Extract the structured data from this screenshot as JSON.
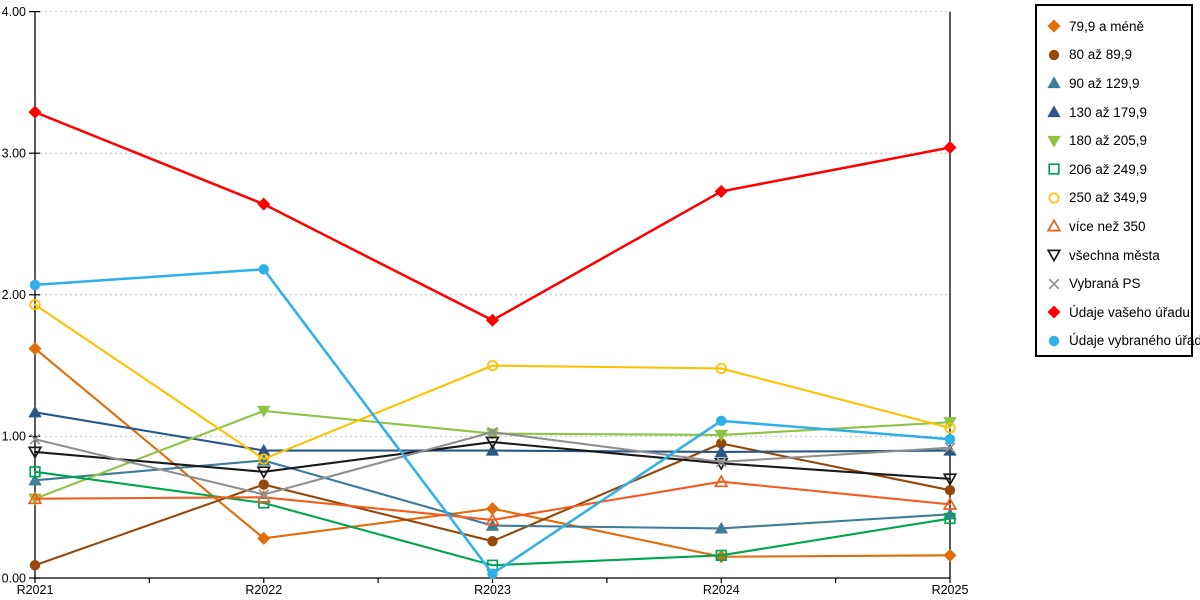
{
  "chart_data": {
    "type": "line",
    "title": "",
    "xlabel": "",
    "ylabel": "",
    "categories": [
      "R2021",
      "R2022",
      "R2023",
      "R2024",
      "R2025"
    ],
    "ylim": [
      0,
      4
    ],
    "y_ticks": [
      "0.00",
      "1.00",
      "2.00",
      "3.00",
      "4.00"
    ],
    "grid": "horizontal dotted",
    "legend_position": "right outside",
    "axis_color": "#000000",
    "grid_color": "#BFBFBF",
    "series": [
      {
        "name": "79,9 a méně",
        "marker": "diamond",
        "filled": true,
        "color": "#E26B0A",
        "values": [
          1.62,
          0.28,
          0.49,
          0.15,
          0.16
        ]
      },
      {
        "name": "80 až 89,9",
        "marker": "circle",
        "filled": true,
        "color": "#96470A",
        "values": [
          0.09,
          0.66,
          0.26,
          0.95,
          0.62
        ]
      },
      {
        "name": "90 až 129,9",
        "marker": "triangle-up",
        "filled": true,
        "color": "#3E7D99",
        "values": [
          0.69,
          0.83,
          0.37,
          0.35,
          0.45
        ]
      },
      {
        "name": "130 až 179,9",
        "marker": "triangle-up",
        "filled": true,
        "color": "#2A5784",
        "values": [
          1.17,
          0.9,
          0.9,
          0.89,
          0.9
        ]
      },
      {
        "name": "180 až 205,9",
        "marker": "triangle-down",
        "filled": true,
        "color": "#8FC342",
        "values": [
          0.56,
          1.18,
          1.02,
          1.01,
          1.1
        ]
      },
      {
        "name": "206 až 249,9",
        "marker": "square",
        "filled": false,
        "color": "#00A551",
        "values": [
          0.75,
          0.53,
          0.09,
          0.16,
          0.42
        ]
      },
      {
        "name": "250 až 349,9",
        "marker": "circle",
        "filled": false,
        "color": "#FFC000",
        "values": [
          1.93,
          0.84,
          1.5,
          1.48,
          1.06
        ]
      },
      {
        "name": "více než 350",
        "marker": "triangle-up",
        "filled": false,
        "color": "#F45A1E",
        "values": [
          0.56,
          0.57,
          0.41,
          0.68,
          0.52
        ]
      },
      {
        "name": "všechna města",
        "marker": "triangle-down",
        "filled": false,
        "color": "#1A1A1A",
        "values": [
          0.89,
          0.75,
          0.96,
          0.81,
          0.7
        ]
      },
      {
        "name": "Vybraná PS",
        "marker": "x",
        "filled": false,
        "color": "#8F8F8F",
        "values": [
          0.98,
          0.59,
          1.03,
          0.82,
          0.92
        ]
      },
      {
        "name": "Údaje vašeho úřadu",
        "marker": "diamond",
        "filled": true,
        "color": "#FF0000",
        "values": [
          3.29,
          2.64,
          1.82,
          2.73,
          3.04
        ]
      },
      {
        "name": "Údaje vybraného úřadu",
        "marker": "circle",
        "filled": true,
        "color": "#2FB0E8",
        "values": [
          2.07,
          2.18,
          0.03,
          1.11,
          0.98
        ]
      }
    ]
  }
}
